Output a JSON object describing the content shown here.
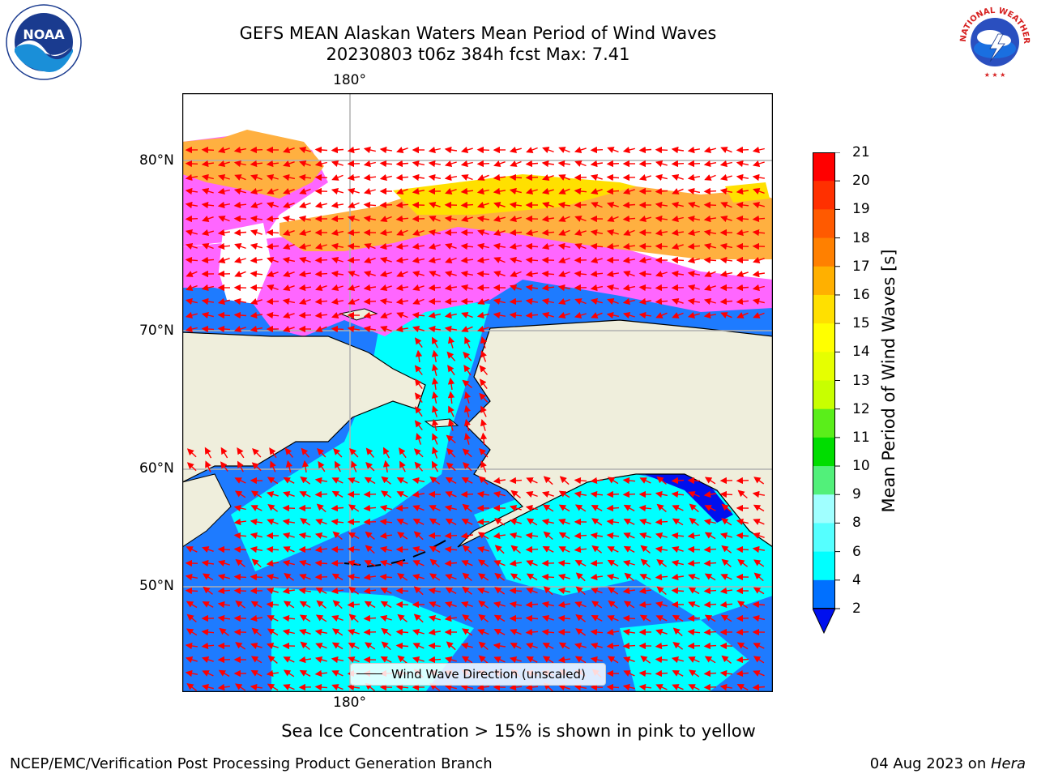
{
  "title": {
    "line1": "GEFS MEAN Alaskan Waters Mean Period of Wind Waves",
    "line2": "20230803 t06z 384h fcst   Max: 7.41"
  },
  "map": {
    "lon_label_top": "180°",
    "lon_label_bottom": "180°",
    "lat_labels": [
      "80°N",
      "70°N",
      "60°N",
      "50°N"
    ],
    "legend_label": "Wind Wave Direction (unscaled)",
    "colors": {
      "ocean_dark": "#1e7bff",
      "ocean_light": "#00ffff",
      "ice_pink": "#ff66ff",
      "ice_orange": "#ffb040",
      "land": "#efeedc",
      "arrow": "#ff0000",
      "grid": "#b0b0b0"
    }
  },
  "colorbar": {
    "label": "Mean Period of Wind Waves [s]",
    "ticks": [
      "21",
      "20",
      "19",
      "18",
      "17",
      "16",
      "15",
      "14",
      "13",
      "12",
      "11",
      "10",
      "9",
      "8",
      "6",
      "4",
      "2"
    ],
    "colors": [
      "#ff0000",
      "#ff3000",
      "#ff5a00",
      "#ff8000",
      "#ffb000",
      "#ffe000",
      "#ffff00",
      "#e6ff00",
      "#c8ff00",
      "#5aee1a",
      "#00dd00",
      "#52f07a",
      "#a0ffff",
      "#55ffff",
      "#00ffff",
      "#0070ff"
    ],
    "extend_color": "#0010ee"
  },
  "caption": "Sea Ice Concentration > 15% is shown in pink to yellow",
  "footer": {
    "left": "NCEP/EMC/Verification Post Processing Product Generation Branch",
    "right_date": "04 Aug 2023 on ",
    "right_machine": "Hera"
  },
  "logos": {
    "left": "NOAA",
    "right": "NATIONAL WEATHER SERVICE"
  }
}
